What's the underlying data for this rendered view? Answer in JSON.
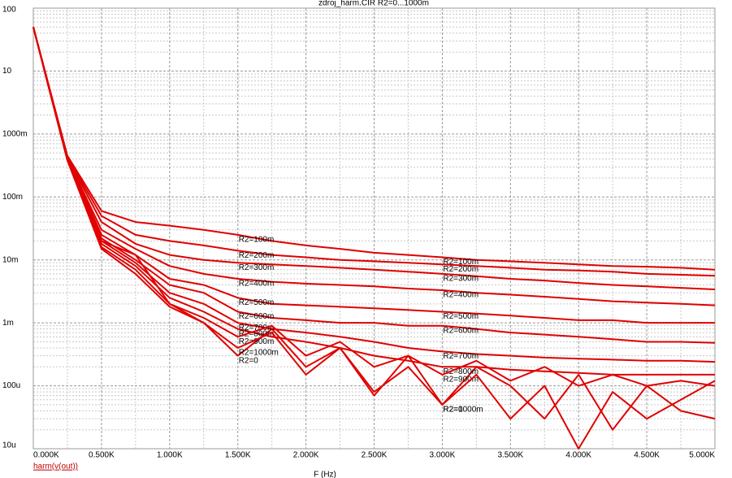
{
  "chart_data": {
    "type": "line",
    "title": "zdroj_harm.CIR R2=0...1000m",
    "x_label": "F (Hz)",
    "legend_label": "harm(v(out))",
    "log_y": true,
    "grid": true,
    "x": [
      0,
      250,
      500,
      750,
      1000,
      1250,
      1500,
      1750,
      2000,
      2250,
      2500,
      2750,
      3000,
      3250,
      3500,
      3750,
      4000,
      4250,
      4500,
      4750,
      5000
    ],
    "xlim": [
      0,
      5000
    ],
    "xticks": [
      {
        "value": 0,
        "label": "0.000K"
      },
      {
        "value": 500,
        "label": "0.500K"
      },
      {
        "value": 1000,
        "label": "1.000K"
      },
      {
        "value": 1500,
        "label": "1.500K"
      },
      {
        "value": 2000,
        "label": "2.000K"
      },
      {
        "value": 2500,
        "label": "2.500K"
      },
      {
        "value": 3000,
        "label": "3.000K"
      },
      {
        "value": 3500,
        "label": "3.500K"
      },
      {
        "value": 4000,
        "label": "4.000K"
      },
      {
        "value": 4500,
        "label": "4.500K"
      },
      {
        "value": 5000,
        "label": "5.000K"
      }
    ],
    "ylim": [
      1e-05,
      100
    ],
    "yticks": [
      {
        "value": 1e-05,
        "label": "10u"
      },
      {
        "value": 0.0001,
        "label": "100u"
      },
      {
        "value": 0.001,
        "label": "1m"
      },
      {
        "value": 0.01,
        "label": "10m"
      },
      {
        "value": 0.1,
        "label": "100m"
      },
      {
        "value": 1,
        "label": "1000m"
      },
      {
        "value": 10,
        "label": "10"
      },
      {
        "value": 100,
        "label": "100"
      }
    ],
    "series": [
      {
        "name": "R2=0",
        "color": "#e00000",
        "values": [
          50,
          0.4,
          0.02,
          0.012,
          0.002,
          0.001,
          0.0003,
          0.0008,
          0.0002,
          0.0004,
          7e-05,
          0.0003,
          5e-05,
          0.0002,
          0.0001,
          3e-05,
          0.00015,
          2e-05,
          0.0001,
          4e-05,
          3e-05
        ]
      },
      {
        "name": "R2=100m",
        "color": "#e00000",
        "values": [
          50,
          0.45,
          0.06,
          0.04,
          0.035,
          0.03,
          0.025,
          0.02,
          0.017,
          0.015,
          0.013,
          0.012,
          0.011,
          0.01,
          0.0095,
          0.009,
          0.0085,
          0.008,
          0.0078,
          0.0075,
          0.007
        ]
      },
      {
        "name": "R2=200m",
        "color": "#e00000",
        "values": [
          50,
          0.43,
          0.05,
          0.025,
          0.02,
          0.017,
          0.014,
          0.012,
          0.011,
          0.01,
          0.0095,
          0.009,
          0.0085,
          0.008,
          0.0075,
          0.007,
          0.0068,
          0.0065,
          0.006,
          0.0058,
          0.0056
        ]
      },
      {
        "name": "R2=300m",
        "color": "#e00000",
        "values": [
          50,
          0.42,
          0.04,
          0.018,
          0.012,
          0.01,
          0.009,
          0.0085,
          0.008,
          0.0075,
          0.007,
          0.0065,
          0.006,
          0.0055,
          0.005,
          0.0047,
          0.0043,
          0.004,
          0.0038,
          0.0036,
          0.0034
        ]
      },
      {
        "name": "R2=400m",
        "color": "#e00000",
        "values": [
          50,
          0.41,
          0.03,
          0.015,
          0.008,
          0.006,
          0.005,
          0.0045,
          0.0042,
          0.004,
          0.0038,
          0.0035,
          0.0033,
          0.003,
          0.0028,
          0.0026,
          0.0024,
          0.0022,
          0.0021,
          0.002,
          0.0019
        ]
      },
      {
        "name": "R2=500m",
        "color": "#e00000",
        "values": [
          50,
          0.4,
          0.025,
          0.012,
          0.005,
          0.004,
          0.0025,
          0.002,
          0.0019,
          0.0018,
          0.0017,
          0.0016,
          0.0015,
          0.0014,
          0.0013,
          0.0012,
          0.0011,
          0.0011,
          0.001,
          0.001,
          0.001
        ]
      },
      {
        "name": "R2=600m",
        "color": "#e00000",
        "values": [
          50,
          0.4,
          0.022,
          0.01,
          0.004,
          0.003,
          0.0015,
          0.0012,
          0.0011,
          0.001,
          0.001,
          0.0009,
          0.0009,
          0.0008,
          0.0007,
          0.00065,
          0.0006,
          0.00055,
          0.0005,
          0.0005,
          0.00048
        ]
      },
      {
        "name": "R2=700m",
        "color": "#e00000",
        "values": [
          50,
          0.39,
          0.02,
          0.009,
          0.003,
          0.002,
          0.001,
          0.0008,
          0.0007,
          0.0006,
          0.0005,
          0.0004,
          0.00035,
          0.00032,
          0.0003,
          0.00028,
          0.00027,
          0.00026,
          0.00025,
          0.00025,
          0.00024
        ]
      },
      {
        "name": "R2=800m",
        "color": "#e00000",
        "values": [
          50,
          0.39,
          0.018,
          0.008,
          0.0025,
          0.0015,
          0.0008,
          0.0006,
          0.0005,
          0.0004,
          0.0003,
          0.00025,
          0.0002,
          0.0002,
          0.00018,
          0.00017,
          0.00016,
          0.00015,
          0.00015,
          0.00015,
          0.00015
        ]
      },
      {
        "name": "R2=900m",
        "color": "#e00000",
        "values": [
          50,
          0.38,
          0.016,
          0.007,
          0.002,
          0.0012,
          0.0006,
          0.0009,
          0.0003,
          0.0005,
          0.0002,
          0.0003,
          0.00015,
          0.00025,
          0.00012,
          0.0002,
          0.0001,
          0.00015,
          0.0001,
          0.00012,
          0.0001
        ]
      },
      {
        "name": "R2=1000m",
        "color": "#e00000",
        "values": [
          50,
          0.38,
          0.015,
          0.006,
          0.0018,
          0.001,
          0.0004,
          0.0007,
          0.00015,
          0.0004,
          8e-05,
          0.0002,
          5e-05,
          0.00015,
          3e-05,
          0.0001,
          1e-05,
          8e-05,
          3e-05,
          6e-05,
          0.00012
        ]
      }
    ]
  }
}
